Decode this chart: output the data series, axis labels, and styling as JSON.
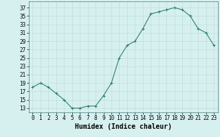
{
  "x": [
    0,
    1,
    2,
    3,
    4,
    5,
    6,
    7,
    8,
    9,
    10,
    11,
    12,
    13,
    14,
    15,
    16,
    17,
    18,
    19,
    20,
    21,
    22,
    23
  ],
  "y": [
    18,
    19,
    18,
    16.5,
    15,
    13,
    13,
    13.5,
    13.5,
    16,
    19,
    25,
    28,
    29,
    32,
    35.5,
    36,
    36.5,
    37,
    36.5,
    35,
    32,
    31,
    28
  ],
  "line_color": "#2e7d6e",
  "marker": "+",
  "bg_color": "#d6f0ef",
  "grid_color": "#c0deda",
  "xlabel": "Humidex (Indice chaleur)",
  "ylabel_ticks": [
    13,
    15,
    17,
    19,
    21,
    23,
    25,
    27,
    29,
    31,
    33,
    35,
    37
  ],
  "xlim": [
    -0.5,
    23.5
  ],
  "ylim": [
    12,
    38.5
  ],
  "xtick_labels": [
    "0",
    "1",
    "2",
    "3",
    "4",
    "5",
    "6",
    "7",
    "8",
    "9",
    "10",
    "11",
    "12",
    "13",
    "14",
    "15",
    "16",
    "17",
    "18",
    "19",
    "20",
    "21",
    "22",
    "23"
  ],
  "tick_fontsize": 5.5,
  "label_fontsize": 7
}
